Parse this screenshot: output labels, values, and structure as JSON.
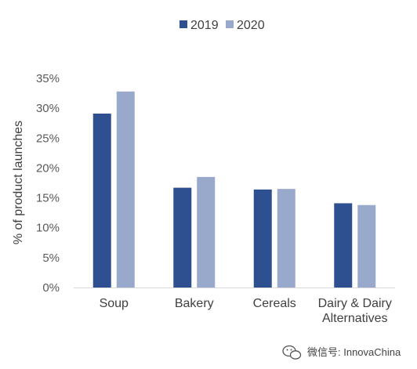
{
  "chart_data": {
    "type": "bar",
    "title": "",
    "xlabel": "",
    "ylabel": "% of product launches",
    "categories": [
      "Soup",
      "Bakery",
      "Cereals",
      "Dairy & Dairy Alternatives"
    ],
    "category_lines": [
      [
        "Soup"
      ],
      [
        "Bakery"
      ],
      [
        "Cereals"
      ],
      [
        "Dairy & Dairy",
        "Alternatives"
      ]
    ],
    "series": [
      {
        "name": "2019",
        "color": "#2f5090",
        "values": [
          29.1,
          16.7,
          16.4,
          14.1
        ]
      },
      {
        "name": "2020",
        "color": "#99a9cc",
        "values": [
          32.8,
          18.5,
          16.5,
          13.8
        ]
      }
    ],
    "ylim": [
      0,
      35
    ],
    "yticks": [
      0,
      5,
      10,
      15,
      20,
      25,
      30,
      35
    ],
    "ytick_labels": [
      "0%",
      "5%",
      "10%",
      "15%",
      "20%",
      "25%",
      "30%",
      "35%"
    ],
    "legend_position": "top-center",
    "grid": false
  },
  "watermark": {
    "icon": "wechat-icon",
    "text": "微信号: InnovaChina"
  }
}
